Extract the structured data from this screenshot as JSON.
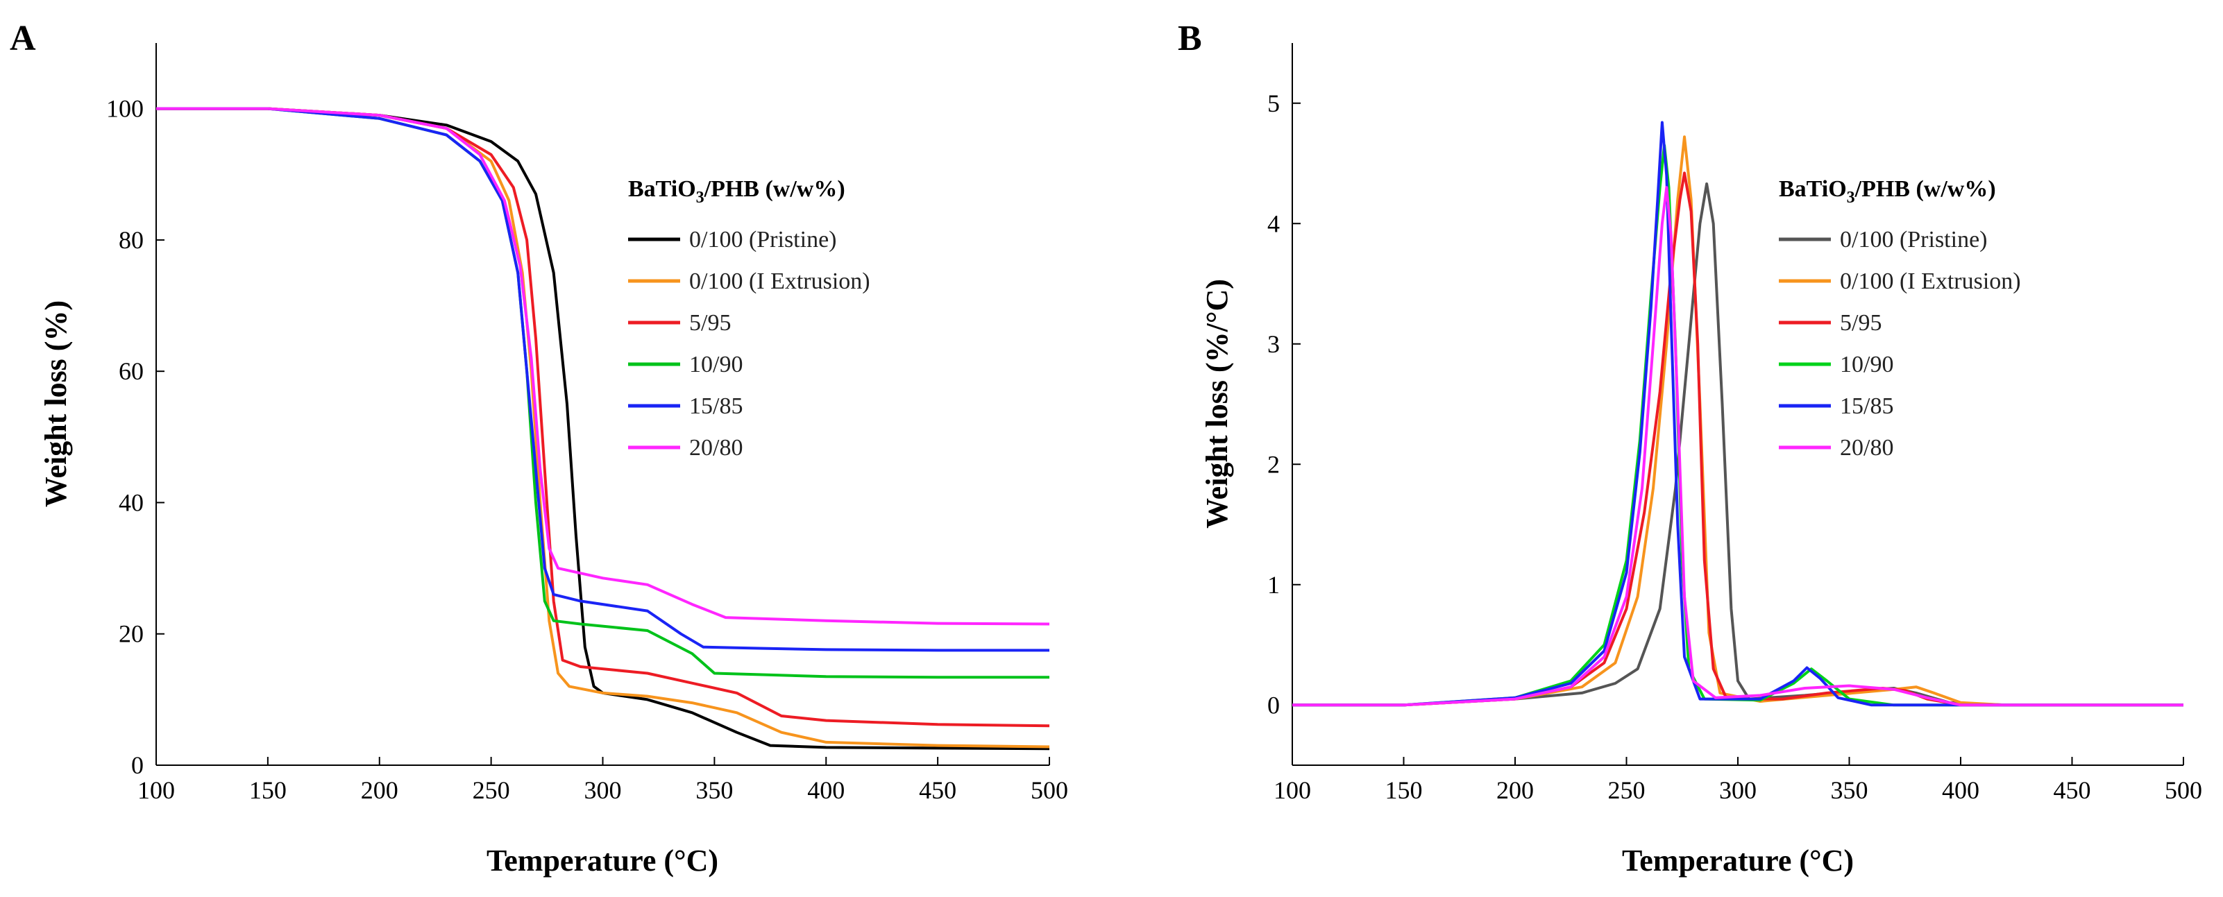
{
  "chart_data": [
    {
      "panel": "A",
      "type": "line",
      "xlabel": "Temperature (°C)",
      "ylabel": "Weight loss (%)",
      "xlim": [
        100,
        500
      ],
      "ylim": [
        0,
        110
      ],
      "xticks": [
        100,
        150,
        200,
        250,
        300,
        350,
        400,
        450,
        500
      ],
      "yticks": [
        0,
        20,
        40,
        60,
        80,
        100
      ],
      "legend": {
        "title_prefix": "BaTiO",
        "title_sub": "3",
        "title_suffix": "/PHB (w/w%)",
        "position": "right"
      },
      "series": [
        {
          "name": "0/100 (Pristine)",
          "color": "#000000",
          "points": [
            [
              100,
              100
            ],
            [
              150,
              100
            ],
            [
              200,
              99
            ],
            [
              230,
              97.5
            ],
            [
              250,
              95
            ],
            [
              262,
              92
            ],
            [
              270,
              87
            ],
            [
              278,
              75
            ],
            [
              284,
              55
            ],
            [
              288,
              35
            ],
            [
              292,
              18
            ],
            [
              296,
              12
            ],
            [
              300,
              11
            ],
            [
              320,
              10
            ],
            [
              340,
              8
            ],
            [
              360,
              5
            ],
            [
              375,
              3
            ],
            [
              400,
              2.7
            ],
            [
              450,
              2.6
            ],
            [
              500,
              2.5
            ]
          ]
        },
        {
          "name": "0/100 (I Extrusion)",
          "color": "#F7941D",
          "points": [
            [
              100,
              100
            ],
            [
              150,
              100
            ],
            [
              200,
              99
            ],
            [
              230,
              97
            ],
            [
              250,
              92
            ],
            [
              258,
              86
            ],
            [
              264,
              75
            ],
            [
              268,
              60
            ],
            [
              272,
              40
            ],
            [
              276,
              22
            ],
            [
              280,
              14
            ],
            [
              285,
              12
            ],
            [
              300,
              11
            ],
            [
              320,
              10.5
            ],
            [
              340,
              9.5
            ],
            [
              360,
              8
            ],
            [
              380,
              5
            ],
            [
              400,
              3.5
            ],
            [
              450,
              3
            ],
            [
              500,
              2.8
            ]
          ]
        },
        {
          "name": "5/95",
          "color": "#ED1C24",
          "points": [
            [
              100,
              100
            ],
            [
              150,
              100
            ],
            [
              200,
              99
            ],
            [
              230,
              97
            ],
            [
              250,
              93
            ],
            [
              260,
              88
            ],
            [
              266,
              80
            ],
            [
              270,
              65
            ],
            [
              274,
              45
            ],
            [
              278,
              25
            ],
            [
              282,
              16
            ],
            [
              290,
              15
            ],
            [
              320,
              14
            ],
            [
              340,
              12.5
            ],
            [
              360,
              11
            ],
            [
              380,
              7.5
            ],
            [
              400,
              6.8
            ],
            [
              450,
              6.2
            ],
            [
              500,
              6
            ]
          ]
        },
        {
          "name": "10/90",
          "color": "#00C21A",
          "points": [
            [
              100,
              100
            ],
            [
              150,
              100
            ],
            [
              200,
              98.5
            ],
            [
              230,
              96
            ],
            [
              245,
              92
            ],
            [
              255,
              86
            ],
            [
              262,
              75
            ],
            [
              266,
              60
            ],
            [
              270,
              40
            ],
            [
              274,
              25
            ],
            [
              278,
              22
            ],
            [
              290,
              21.5
            ],
            [
              320,
              20.5
            ],
            [
              340,
              17
            ],
            [
              350,
              14
            ],
            [
              370,
              13.8
            ],
            [
              400,
              13.5
            ],
            [
              450,
              13.4
            ],
            [
              500,
              13.4
            ]
          ]
        },
        {
          "name": "15/85",
          "color": "#1A24F5",
          "points": [
            [
              100,
              100
            ],
            [
              150,
              100
            ],
            [
              200,
              98.5
            ],
            [
              230,
              96
            ],
            [
              245,
              92
            ],
            [
              255,
              86
            ],
            [
              262,
              75
            ],
            [
              266,
              60
            ],
            [
              270,
              45
            ],
            [
              274,
              30
            ],
            [
              278,
              26
            ],
            [
              290,
              25
            ],
            [
              320,
              23.5
            ],
            [
              335,
              20
            ],
            [
              345,
              18
            ],
            [
              370,
              17.8
            ],
            [
              400,
              17.6
            ],
            [
              450,
              17.5
            ],
            [
              500,
              17.5
            ]
          ]
        },
        {
          "name": "20/80",
          "color": "#FF26FF",
          "points": [
            [
              100,
              100
            ],
            [
              150,
              100
            ],
            [
              200,
              99
            ],
            [
              230,
              97
            ],
            [
              245,
              93
            ],
            [
              256,
              86
            ],
            [
              263,
              76
            ],
            [
              268,
              62
            ],
            [
              272,
              45
            ],
            [
              276,
              33
            ],
            [
              280,
              30
            ],
            [
              300,
              28.5
            ],
            [
              320,
              27.5
            ],
            [
              340,
              24.5
            ],
            [
              355,
              22.5
            ],
            [
              400,
              22
            ],
            [
              450,
              21.6
            ],
            [
              500,
              21.5
            ]
          ]
        }
      ]
    },
    {
      "panel": "B",
      "type": "line",
      "xlabel": "Temperature (°C)",
      "ylabel": "Weight loss (%/°C)",
      "xlim": [
        100,
        500
      ],
      "ylim": [
        -0.5,
        5.5
      ],
      "xticks": [
        100,
        150,
        200,
        250,
        300,
        350,
        400,
        450,
        500
      ],
      "yticks": [
        0,
        1,
        2,
        3,
        4,
        5
      ],
      "legend": {
        "title_prefix": "BaTiO",
        "title_sub": "3",
        "title_suffix": "/PHB (w/w%)",
        "position": "right"
      },
      "series": [
        {
          "name": "0/100 (Pristine)",
          "color": "#555555",
          "points": [
            [
              100,
              0
            ],
            [
              150,
              0
            ],
            [
              200,
              0.05
            ],
            [
              230,
              0.1
            ],
            [
              245,
              0.18
            ],
            [
              255,
              0.3
            ],
            [
              265,
              0.8
            ],
            [
              272,
              1.8
            ],
            [
              278,
              3.0
            ],
            [
              283,
              4.0
            ],
            [
              286,
              4.33
            ],
            [
              289,
              4.0
            ],
            [
              293,
              2.5
            ],
            [
              297,
              0.8
            ],
            [
              300,
              0.2
            ],
            [
              305,
              0.05
            ],
            [
              330,
              0.08
            ],
            [
              355,
              0.12
            ],
            [
              370,
              0.14
            ],
            [
              380,
              0.1
            ],
            [
              395,
              0.02
            ],
            [
              420,
              0
            ],
            [
              500,
              0
            ]
          ]
        },
        {
          "name": "0/100 (I Extrusion)",
          "color": "#F7941D",
          "points": [
            [
              100,
              0
            ],
            [
              150,
              0
            ],
            [
              200,
              0.05
            ],
            [
              230,
              0.15
            ],
            [
              245,
              0.35
            ],
            [
              255,
              0.9
            ],
            [
              262,
              1.8
            ],
            [
              268,
              3.0
            ],
            [
              273,
              4.2
            ],
            [
              276,
              4.72
            ],
            [
              279,
              4.2
            ],
            [
              283,
              2.5
            ],
            [
              287,
              0.6
            ],
            [
              292,
              0.1
            ],
            [
              310,
              0.03
            ],
            [
              340,
              0.08
            ],
            [
              370,
              0.13
            ],
            [
              380,
              0.15
            ],
            [
              388,
              0.1
            ],
            [
              400,
              0.02
            ],
            [
              420,
              0
            ],
            [
              500,
              0
            ]
          ]
        },
        {
          "name": "5/95",
          "color": "#ED1C24",
          "points": [
            [
              100,
              0
            ],
            [
              150,
              0
            ],
            [
              200,
              0.05
            ],
            [
              225,
              0.15
            ],
            [
              240,
              0.35
            ],
            [
              250,
              0.8
            ],
            [
              258,
              1.6
            ],
            [
              265,
              2.6
            ],
            [
              270,
              3.6
            ],
            [
              274,
              4.2
            ],
            [
              276,
              4.42
            ],
            [
              279,
              4.1
            ],
            [
              282,
              3.0
            ],
            [
              285,
              1.2
            ],
            [
              289,
              0.3
            ],
            [
              295,
              0.05
            ],
            [
              320,
              0.05
            ],
            [
              340,
              0.1
            ],
            [
              365,
              0.14
            ],
            [
              375,
              0.12
            ],
            [
              385,
              0.05
            ],
            [
              400,
              0
            ],
            [
              500,
              0
            ]
          ]
        },
        {
          "name": "10/90",
          "color": "#00D21A",
          "points": [
            [
              100,
              0
            ],
            [
              150,
              0
            ],
            [
              200,
              0.06
            ],
            [
              225,
              0.2
            ],
            [
              240,
              0.5
            ],
            [
              250,
              1.2
            ],
            [
              256,
              2.2
            ],
            [
              261,
              3.4
            ],
            [
              265,
              4.3
            ],
            [
              267,
              4.65
            ],
            [
              269,
              4.3
            ],
            [
              272,
              3.0
            ],
            [
              275,
              1.2
            ],
            [
              278,
              0.3
            ],
            [
              285,
              0.05
            ],
            [
              310,
              0.04
            ],
            [
              325,
              0.18
            ],
            [
              333,
              0.3
            ],
            [
              340,
              0.2
            ],
            [
              350,
              0.05
            ],
            [
              370,
              0
            ],
            [
              500,
              0
            ]
          ]
        },
        {
          "name": "15/85",
          "color": "#1A24F5",
          "points": [
            [
              100,
              0
            ],
            [
              150,
              0
            ],
            [
              200,
              0.06
            ],
            [
              225,
              0.18
            ],
            [
              240,
              0.45
            ],
            [
              250,
              1.1
            ],
            [
              256,
              2.1
            ],
            [
              261,
              3.3
            ],
            [
              264,
              4.2
            ],
            [
              266,
              4.84
            ],
            [
              268,
              4.4
            ],
            [
              270,
              3.2
            ],
            [
              273,
              1.5
            ],
            [
              276,
              0.4
            ],
            [
              283,
              0.05
            ],
            [
              310,
              0.05
            ],
            [
              325,
              0.2
            ],
            [
              331,
              0.31
            ],
            [
              337,
              0.22
            ],
            [
              345,
              0.06
            ],
            [
              360,
              0
            ],
            [
              500,
              0
            ]
          ]
        },
        {
          "name": "20/80",
          "color": "#FF26FF",
          "points": [
            [
              100,
              0
            ],
            [
              150,
              0
            ],
            [
              200,
              0.05
            ],
            [
              225,
              0.15
            ],
            [
              240,
              0.4
            ],
            [
              250,
              0.9
            ],
            [
              257,
              1.8
            ],
            [
              262,
              3.0
            ],
            [
              266,
              4.0
            ],
            [
              268,
              4.3
            ],
            [
              270,
              3.9
            ],
            [
              273,
              2.5
            ],
            [
              276,
              0.9
            ],
            [
              280,
              0.2
            ],
            [
              290,
              0.06
            ],
            [
              310,
              0.08
            ],
            [
              330,
              0.14
            ],
            [
              350,
              0.16
            ],
            [
              370,
              0.13
            ],
            [
              385,
              0.06
            ],
            [
              400,
              0
            ],
            [
              500,
              0
            ]
          ]
        }
      ]
    }
  ]
}
